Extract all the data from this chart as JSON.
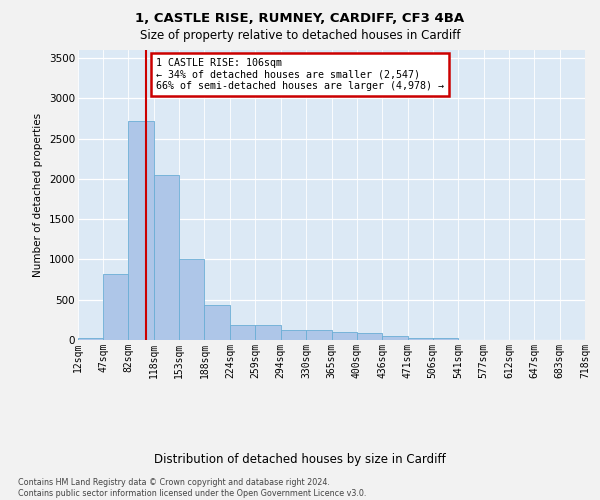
{
  "title1": "1, CASTLE RISE, RUMNEY, CARDIFF, CF3 4BA",
  "title2": "Size of property relative to detached houses in Cardiff",
  "xlabel": "Distribution of detached houses by size in Cardiff",
  "ylabel": "Number of detached properties",
  "bin_labels": [
    "12sqm",
    "47sqm",
    "82sqm",
    "118sqm",
    "153sqm",
    "188sqm",
    "224sqm",
    "259sqm",
    "294sqm",
    "330sqm",
    "365sqm",
    "400sqm",
    "436sqm",
    "471sqm",
    "506sqm",
    "541sqm",
    "577sqm",
    "612sqm",
    "647sqm",
    "683sqm",
    "718sqm"
  ],
  "bin_edges": [
    12,
    47,
    82,
    118,
    153,
    188,
    224,
    259,
    294,
    330,
    365,
    400,
    436,
    471,
    506,
    541,
    577,
    612,
    647,
    683,
    718
  ],
  "bar_heights": [
    30,
    820,
    2720,
    2050,
    1000,
    430,
    190,
    190,
    130,
    120,
    95,
    85,
    50,
    30,
    25,
    0,
    0,
    0,
    0,
    0
  ],
  "bar_color": "#aec6e8",
  "bar_edgecolor": "#6baed6",
  "property_sqm": 106,
  "vline_color": "#cc0000",
  "annotation_line1": "1 CASTLE RISE: 106sqm",
  "annotation_line2": "← 34% of detached houses are smaller (2,547)",
  "annotation_line3": "66% of semi-detached houses are larger (4,978) →",
  "annotation_box_facecolor": "#ffffff",
  "annotation_box_edgecolor": "#cc0000",
  "ylim_max": 3600,
  "yticks": [
    0,
    500,
    1000,
    1500,
    2000,
    2500,
    3000,
    3500
  ],
  "plot_bg_color": "#dce9f5",
  "fig_bg_color": "#f2f2f2",
  "footnote_line1": "Contains HM Land Registry data © Crown copyright and database right 2024.",
  "footnote_line2": "Contains public sector information licensed under the Open Government Licence v3.0."
}
